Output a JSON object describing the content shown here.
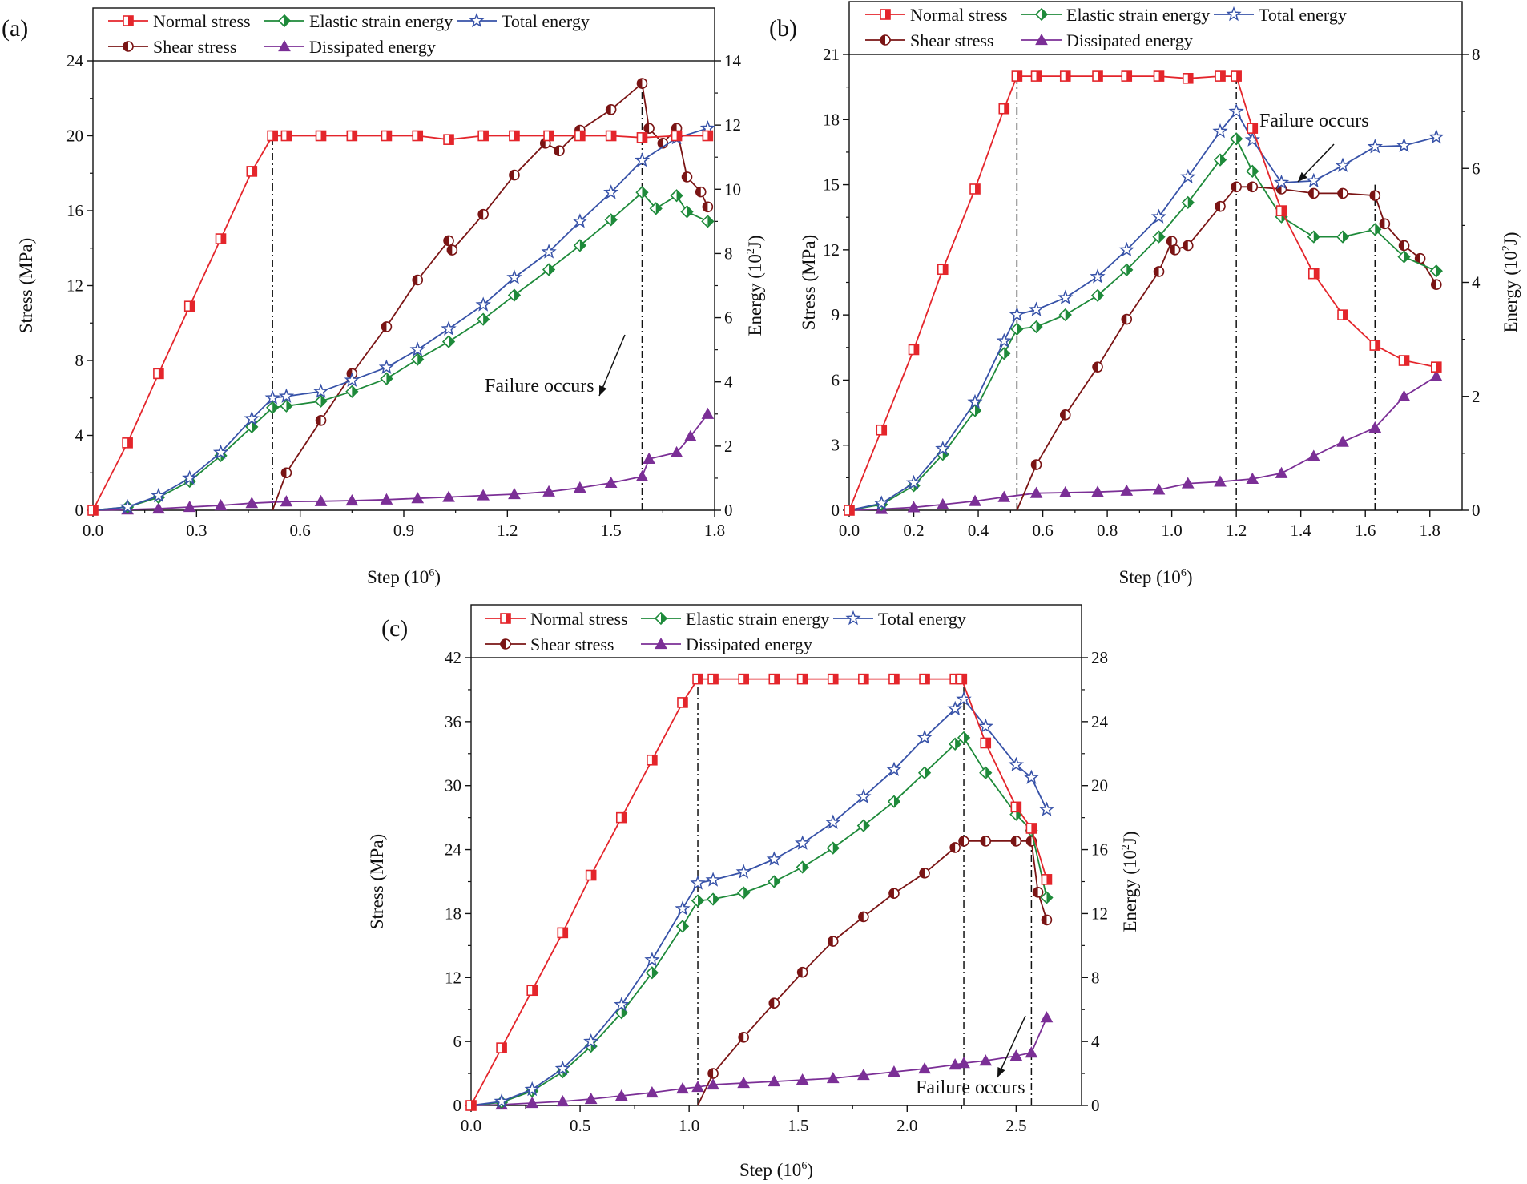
{
  "figure": {
    "panels": [
      {
        "letter": "(a)"
      },
      {
        "letter": "(b)"
      },
      {
        "letter": "(c)"
      }
    ]
  },
  "colors": {
    "normal": "#e4252b",
    "elastic": "#1e8a3a",
    "total": "#3752a8",
    "shear": "#7a1414",
    "dissipated": "#7b2f96",
    "guide": "#111111"
  },
  "chart_data": [
    {
      "id": "a",
      "type": "line",
      "title": "(a)",
      "xlabel": "Step (10^6)",
      "ylabel_left": "Stress (MPa)",
      "ylabel_right": "Energy (10^2J)",
      "xlim": [
        0,
        1.8
      ],
      "ylim_left": [
        0,
        24
      ],
      "ylim_right": [
        0,
        14
      ],
      "xticks": [
        "0.0",
        "0.3",
        "0.6",
        "0.9",
        "1.2",
        "1.5",
        "1.8"
      ],
      "xtick_values": [
        0,
        0.3,
        0.6,
        0.9,
        1.2,
        1.5,
        1.8
      ],
      "yticks_left": [
        "0",
        "4",
        "8",
        "12",
        "16",
        "20",
        "24"
      ],
      "ytick_left_values": [
        0,
        4,
        8,
        12,
        16,
        20,
        24
      ],
      "yticks_right": [
        "0",
        "2",
        "4",
        "6",
        "8",
        "10",
        "12",
        "14"
      ],
      "ytick_right_values": [
        0,
        2,
        4,
        6,
        8,
        10,
        12,
        14
      ],
      "legend": [
        "Normal stress",
        "Elastic strain energy",
        "Total energy",
        "Shear stress",
        "Dissipated energy"
      ],
      "annotation": "Failure occurs",
      "guide_lines": [
        {
          "x": 0.52,
          "y_left": 20
        },
        {
          "x": 1.59,
          "y_left": 23
        }
      ],
      "series": [
        {
          "name": "Normal stress",
          "axis": "left",
          "marker": "square",
          "x": [
            0,
            0.1,
            0.19,
            0.28,
            0.37,
            0.46,
            0.52,
            0.56,
            0.66,
            0.75,
            0.85,
            0.94,
            1.03,
            1.13,
            1.22,
            1.32,
            1.41,
            1.5,
            1.59,
            1.69,
            1.78
          ],
          "y": [
            0,
            3.6,
            7.3,
            10.9,
            14.5,
            18.1,
            20,
            20,
            20,
            20,
            20,
            20,
            19.8,
            20,
            20,
            20,
            20,
            20,
            19.9,
            20,
            20
          ]
        },
        {
          "name": "Shear stress",
          "axis": "left",
          "marker": "circle",
          "x": [
            0.52,
            0.56,
            0.66,
            0.75,
            0.85,
            0.94,
            1.03,
            1.04,
            1.13,
            1.22,
            1.31,
            1.35,
            1.41,
            1.5,
            1.59,
            1.61,
            1.65,
            1.69,
            1.72,
            1.76,
            1.78
          ],
          "y": [
            0,
            2,
            4.8,
            7.3,
            9.8,
            12.3,
            14.4,
            13.9,
            15.8,
            17.9,
            19.6,
            19.2,
            20.3,
            21.4,
            22.8,
            20.4,
            19.6,
            20.4,
            17.8,
            17,
            16.2
          ]
        },
        {
          "name": "Elastic strain energy",
          "axis": "right",
          "marker": "diamond",
          "x": [
            0,
            0.1,
            0.19,
            0.28,
            0.37,
            0.46,
            0.52,
            0.56,
            0.66,
            0.75,
            0.85,
            0.94,
            1.03,
            1.13,
            1.22,
            1.32,
            1.41,
            1.5,
            1.59,
            1.63,
            1.69,
            1.72,
            1.78
          ],
          "y": [
            0,
            0.1,
            0.4,
            0.9,
            1.7,
            2.6,
            3.2,
            3.25,
            3.4,
            3.7,
            4.1,
            4.7,
            5.25,
            5.95,
            6.7,
            7.5,
            8.25,
            9.05,
            9.9,
            9.4,
            9.8,
            9.3,
            9
          ]
        },
        {
          "name": "Total energy",
          "axis": "right",
          "marker": "star",
          "x": [
            0,
            0.1,
            0.19,
            0.28,
            0.37,
            0.46,
            0.52,
            0.56,
            0.66,
            0.75,
            0.85,
            0.94,
            1.03,
            1.13,
            1.22,
            1.32,
            1.41,
            1.5,
            1.59,
            1.69,
            1.78
          ],
          "y": [
            0,
            0.1,
            0.45,
            1,
            1.8,
            2.85,
            3.5,
            3.55,
            3.7,
            4.05,
            4.45,
            5,
            5.65,
            6.4,
            7.25,
            8.05,
            9,
            9.9,
            10.9,
            11.6,
            11.9
          ]
        },
        {
          "name": "Dissipated energy",
          "axis": "right",
          "marker": "triangle",
          "x": [
            0,
            0.1,
            0.19,
            0.28,
            0.37,
            0.46,
            0.56,
            0.66,
            0.75,
            0.85,
            0.94,
            1.03,
            1.13,
            1.22,
            1.32,
            1.41,
            1.5,
            1.59,
            1.61,
            1.69,
            1.73,
            1.78
          ],
          "y": [
            0,
            0.02,
            0.05,
            0.1,
            0.15,
            0.22,
            0.27,
            0.28,
            0.3,
            0.33,
            0.37,
            0.41,
            0.46,
            0.5,
            0.58,
            0.7,
            0.85,
            1.05,
            1.6,
            1.8,
            2.3,
            3
          ]
        }
      ]
    },
    {
      "id": "b",
      "type": "line",
      "title": "(b)",
      "xlabel": "Step (10^6)",
      "ylabel_left": "Stress (MPa)",
      "ylabel_right": "Energy (10^2J)",
      "xlim": [
        0,
        1.9
      ],
      "ylim_left": [
        0,
        21
      ],
      "ylim_right": [
        0,
        8
      ],
      "xticks": [
        "0.0",
        "0.2",
        "0.4",
        "0.6",
        "0.8",
        "1.0",
        "1.2",
        "1.4",
        "1.6",
        "1.8"
      ],
      "xtick_values": [
        0,
        0.2,
        0.4,
        0.6,
        0.8,
        1.0,
        1.2,
        1.4,
        1.6,
        1.8
      ],
      "yticks_left": [
        "0",
        "3",
        "6",
        "9",
        "12",
        "15",
        "18",
        "21"
      ],
      "ytick_left_values": [
        0,
        3,
        6,
        9,
        12,
        15,
        18,
        21
      ],
      "yticks_right": [
        "0",
        "2",
        "4",
        "6",
        "8"
      ],
      "ytick_right_values": [
        0,
        2,
        4,
        6,
        8
      ],
      "legend": [
        "Normal stress",
        "Elastic strain energy",
        "Total energy",
        "Shear stress",
        "Dissipated energy"
      ],
      "annotation": "Failure occurs",
      "guide_lines": [
        {
          "x": 0.52,
          "y_left": 20
        },
        {
          "x": 1.2,
          "y_left": 20
        },
        {
          "x": 1.63,
          "y_left": 15
        }
      ],
      "series": [
        {
          "name": "Normal stress",
          "axis": "left",
          "marker": "square",
          "x": [
            0,
            0.1,
            0.2,
            0.29,
            0.39,
            0.48,
            0.52,
            0.58,
            0.67,
            0.77,
            0.86,
            0.96,
            1.05,
            1.15,
            1.2,
            1.25,
            1.34,
            1.44,
            1.53,
            1.63,
            1.72,
            1.82
          ],
          "y": [
            0,
            3.7,
            7.4,
            11.1,
            14.8,
            18.5,
            20,
            20,
            20,
            20,
            20,
            20,
            19.9,
            20,
            20,
            17.6,
            13.8,
            10.9,
            9,
            7.6,
            6.9,
            6.6
          ]
        },
        {
          "name": "Shear stress",
          "axis": "left",
          "marker": "circle",
          "x": [
            0.52,
            0.58,
            0.67,
            0.77,
            0.86,
            0.96,
            1.0,
            1.01,
            1.05,
            1.15,
            1.2,
            1.25,
            1.34,
            1.44,
            1.53,
            1.63,
            1.66,
            1.72,
            1.77,
            1.82
          ],
          "y": [
            0,
            2.1,
            4.4,
            6.6,
            8.8,
            11,
            12.4,
            12,
            12.2,
            14,
            14.9,
            14.9,
            14.8,
            14.6,
            14.6,
            14.5,
            13.2,
            12.2,
            11.6,
            10.4
          ]
        },
        {
          "name": "Elastic strain energy",
          "axis": "right",
          "marker": "diamond",
          "x": [
            0,
            0.1,
            0.2,
            0.29,
            0.39,
            0.48,
            0.52,
            0.58,
            0.67,
            0.77,
            0.86,
            0.96,
            1.05,
            1.15,
            1.2,
            1.25,
            1.34,
            1.44,
            1.53,
            1.63,
            1.72,
            1.82
          ],
          "y": [
            0,
            0.1,
            0.43,
            0.98,
            1.75,
            2.75,
            3.18,
            3.22,
            3.43,
            3.77,
            4.22,
            4.8,
            5.4,
            6.15,
            6.52,
            5.95,
            5.15,
            4.8,
            4.8,
            4.93,
            4.45,
            4.2
          ]
        },
        {
          "name": "Total energy",
          "axis": "right",
          "marker": "star",
          "x": [
            0,
            0.1,
            0.2,
            0.29,
            0.39,
            0.48,
            0.52,
            0.58,
            0.67,
            0.77,
            0.86,
            0.96,
            1.05,
            1.15,
            1.2,
            1.25,
            1.34,
            1.44,
            1.53,
            1.63,
            1.72,
            1.82
          ],
          "y": [
            0,
            0.12,
            0.48,
            1.08,
            1.9,
            2.97,
            3.43,
            3.52,
            3.73,
            4.1,
            4.57,
            5.15,
            5.85,
            6.65,
            7,
            6.5,
            5.75,
            5.78,
            6.05,
            6.38,
            6.4,
            6.55
          ]
        },
        {
          "name": "Dissipated energy",
          "axis": "right",
          "marker": "triangle",
          "x": [
            0,
            0.1,
            0.2,
            0.29,
            0.39,
            0.48,
            0.58,
            0.67,
            0.77,
            0.86,
            0.96,
            1.05,
            1.15,
            1.25,
            1.34,
            1.44,
            1.53,
            1.63,
            1.72,
            1.82
          ],
          "y": [
            0,
            0.02,
            0.05,
            0.1,
            0.16,
            0.23,
            0.3,
            0.31,
            0.32,
            0.34,
            0.36,
            0.47,
            0.5,
            0.55,
            0.65,
            0.95,
            1.2,
            1.45,
            2,
            2.35
          ]
        }
      ]
    },
    {
      "id": "c",
      "type": "line",
      "title": "(c)",
      "xlabel": "Step (10^6)",
      "ylabel_left": "Stress (MPa)",
      "ylabel_right": "Energy (10^2J)",
      "xlim": [
        0,
        2.8
      ],
      "ylim_left": [
        0,
        42
      ],
      "ylim_right": [
        0,
        28
      ],
      "xticks": [
        "0.0",
        "0.5",
        "1.0",
        "1.5",
        "2.0",
        "2.5"
      ],
      "xtick_values": [
        0,
        0.5,
        1.0,
        1.5,
        2.0,
        2.5
      ],
      "yticks_left": [
        "0",
        "6",
        "12",
        "18",
        "24",
        "30",
        "36",
        "42"
      ],
      "ytick_left_values": [
        0,
        6,
        12,
        18,
        24,
        30,
        36,
        42
      ],
      "yticks_right": [
        "0",
        "4",
        "8",
        "12",
        "16",
        "20",
        "24",
        "28"
      ],
      "ytick_right_values": [
        0,
        4,
        8,
        12,
        16,
        20,
        24,
        28
      ],
      "legend": [
        "Normal stress",
        "Elastic strain energy",
        "Total energy",
        "Shear stress",
        "Dissipated energy"
      ],
      "annotation": "Failure occurs",
      "guide_lines": [
        {
          "x": 1.04,
          "y_left": 40
        },
        {
          "x": 2.26,
          "y_left": 40
        },
        {
          "x": 2.57,
          "y_left": 26
        }
      ],
      "series": [
        {
          "name": "Normal stress",
          "axis": "left",
          "marker": "square",
          "x": [
            0,
            0.14,
            0.28,
            0.42,
            0.55,
            0.69,
            0.83,
            0.97,
            1.04,
            1.11,
            1.25,
            1.39,
            1.52,
            1.66,
            1.8,
            1.94,
            2.08,
            2.22,
            2.25,
            2.36,
            2.5,
            2.57,
            2.64
          ],
          "y": [
            0,
            5.4,
            10.8,
            16.2,
            21.6,
            27,
            32.4,
            37.8,
            40,
            40,
            40,
            40,
            40,
            40,
            40,
            40,
            40,
            40,
            40,
            34,
            28,
            26,
            21.2
          ]
        },
        {
          "name": "Shear stress",
          "axis": "left",
          "marker": "circle",
          "x": [
            1.04,
            1.11,
            1.25,
            1.39,
            1.52,
            1.66,
            1.8,
            1.94,
            2.08,
            2.22,
            2.26,
            2.36,
            2.5,
            2.57,
            2.6,
            2.64
          ],
          "y": [
            0,
            3,
            6.4,
            9.6,
            12.5,
            15.4,
            17.7,
            19.9,
            21.8,
            24.2,
            24.8,
            24.8,
            24.8,
            24.8,
            20,
            17.4
          ]
        },
        {
          "name": "Elastic strain energy",
          "axis": "right",
          "marker": "diamond",
          "x": [
            0,
            0.14,
            0.28,
            0.42,
            0.55,
            0.69,
            0.83,
            0.97,
            1.04,
            1.11,
            1.25,
            1.39,
            1.52,
            1.66,
            1.8,
            1.94,
            2.08,
            2.22,
            2.26,
            2.36,
            2.5,
            2.57,
            2.64
          ],
          "y": [
            0,
            0.2,
            0.9,
            2.1,
            3.7,
            5.8,
            8.3,
            11.2,
            12.8,
            12.9,
            13.3,
            14,
            14.9,
            16.1,
            17.5,
            19,
            20.8,
            22.6,
            23,
            20.8,
            18.2,
            17.2,
            13
          ]
        },
        {
          "name": "Total energy",
          "axis": "right",
          "marker": "star",
          "x": [
            0,
            0.14,
            0.28,
            0.42,
            0.55,
            0.69,
            0.83,
            0.97,
            1.04,
            1.11,
            1.25,
            1.39,
            1.52,
            1.66,
            1.8,
            1.94,
            2.08,
            2.22,
            2.26,
            2.36,
            2.5,
            2.57,
            2.64
          ],
          "y": [
            0,
            0.25,
            1,
            2.3,
            4,
            6.3,
            9.1,
            12.3,
            13.9,
            14.1,
            14.6,
            15.4,
            16.4,
            17.7,
            19.3,
            21,
            23,
            24.8,
            25.4,
            23.7,
            21.3,
            20.5,
            18.5
          ]
        },
        {
          "name": "Dissipated energy",
          "axis": "right",
          "marker": "triangle",
          "x": [
            0,
            0.14,
            0.28,
            0.42,
            0.55,
            0.69,
            0.83,
            0.97,
            1.04,
            1.11,
            1.25,
            1.39,
            1.52,
            1.66,
            1.8,
            1.94,
            2.08,
            2.22,
            2.26,
            2.36,
            2.5,
            2.57,
            2.64
          ],
          "y": [
            0,
            0.05,
            0.15,
            0.25,
            0.4,
            0.6,
            0.8,
            1.05,
            1.15,
            1.3,
            1.4,
            1.5,
            1.6,
            1.7,
            1.9,
            2.1,
            2.3,
            2.55,
            2.65,
            2.8,
            3.1,
            3.3,
            5.5
          ]
        }
      ]
    }
  ]
}
